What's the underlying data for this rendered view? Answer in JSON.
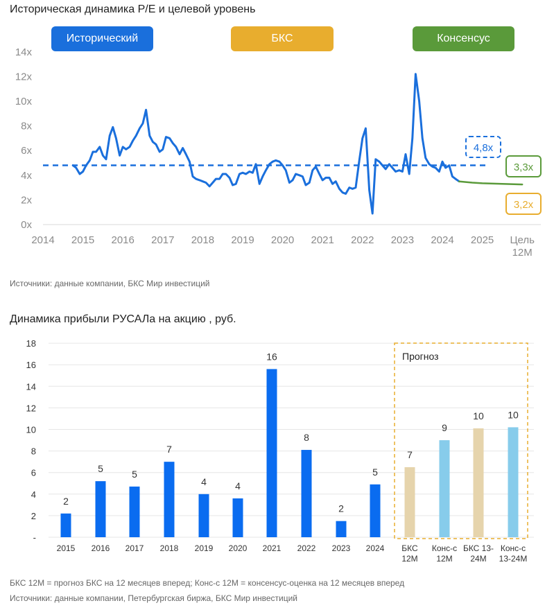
{
  "chart1": {
    "title": "Историческая динамика P/E и целевой уровень",
    "source": "Источники: данные компании, БКС Мир инвестиций",
    "legend": [
      {
        "label": "Исторический",
        "color": "#1a6fdc"
      },
      {
        "label": "БКС",
        "color": "#e8ad2e"
      },
      {
        "label": "Консенсус",
        "color": "#5a9a3a"
      }
    ]
  },
  "chart2": {
    "title": "Динамика прибыли РУСАЛа на акцию , руб.",
    "forecast_label": "Прогноз",
    "footnote": "БКС 12М = прогноз БКС на 12 месяцев вперед; Конс-с 12М = консенсус-оценка на 12 месяцев вперед",
    "source": "Источники: данные компании, Петербургская биржа, БКС Мир инвестиций"
  },
  "chart_data": [
    {
      "type": "line",
      "title": "Историческая динамика P/E и целевой уровень",
      "y_unit": "x",
      "ylim": [
        0,
        14
      ],
      "y_ticks": [
        "0x",
        "2x",
        "4x",
        "6x",
        "8x",
        "10x",
        "12x",
        "14x"
      ],
      "x_ticks": [
        "2014",
        "2015",
        "2016",
        "2017",
        "2018",
        "2019",
        "2020",
        "2021",
        "2022",
        "2023",
        "2024",
        "2025",
        "Цель\n12М"
      ],
      "grid": false,
      "series": [
        {
          "name": "Исторический",
          "color": "#1a6fdc",
          "points": [
            [
              2014.75,
              4.8
            ],
            [
              2014.83,
              4.6
            ],
            [
              2014.92,
              4.1
            ],
            [
              2015.0,
              4.3
            ],
            [
              2015.08,
              4.8
            ],
            [
              2015.17,
              5.2
            ],
            [
              2015.25,
              5.9
            ],
            [
              2015.33,
              5.9
            ],
            [
              2015.42,
              6.3
            ],
            [
              2015.5,
              5.6
            ],
            [
              2015.58,
              5.3
            ],
            [
              2015.67,
              7.2
            ],
            [
              2015.75,
              7.9
            ],
            [
              2015.83,
              7.0
            ],
            [
              2015.92,
              5.6
            ],
            [
              2016.0,
              6.3
            ],
            [
              2016.08,
              6.1
            ],
            [
              2016.17,
              6.3
            ],
            [
              2016.25,
              6.8
            ],
            [
              2016.33,
              7.2
            ],
            [
              2016.42,
              7.8
            ],
            [
              2016.5,
              8.2
            ],
            [
              2016.58,
              9.3
            ],
            [
              2016.67,
              7.2
            ],
            [
              2016.75,
              6.7
            ],
            [
              2016.83,
              6.5
            ],
            [
              2016.92,
              5.9
            ],
            [
              2017.0,
              6.1
            ],
            [
              2017.08,
              7.1
            ],
            [
              2017.17,
              7.0
            ],
            [
              2017.25,
              6.6
            ],
            [
              2017.33,
              6.3
            ],
            [
              2017.42,
              5.7
            ],
            [
              2017.5,
              6.2
            ],
            [
              2017.58,
              5.7
            ],
            [
              2017.67,
              5.1
            ],
            [
              2017.75,
              3.9
            ],
            [
              2017.83,
              3.7
            ],
            [
              2017.92,
              3.6
            ],
            [
              2018.0,
              3.5
            ],
            [
              2018.08,
              3.4
            ],
            [
              2018.17,
              3.1
            ],
            [
              2018.25,
              3.4
            ],
            [
              2018.33,
              3.7
            ],
            [
              2018.42,
              3.7
            ],
            [
              2018.5,
              4.1
            ],
            [
              2018.58,
              4.1
            ],
            [
              2018.67,
              3.8
            ],
            [
              2018.75,
              3.2
            ],
            [
              2018.83,
              3.3
            ],
            [
              2018.92,
              4.1
            ],
            [
              2019.0,
              4.2
            ],
            [
              2019.08,
              4.1
            ],
            [
              2019.17,
              4.3
            ],
            [
              2019.25,
              4.2
            ],
            [
              2019.33,
              4.9
            ],
            [
              2019.42,
              3.3
            ],
            [
              2019.5,
              3.9
            ],
            [
              2019.58,
              4.4
            ],
            [
              2019.67,
              4.9
            ],
            [
              2019.75,
              5.1
            ],
            [
              2019.83,
              5.2
            ],
            [
              2019.92,
              5.1
            ],
            [
              2020.0,
              4.8
            ],
            [
              2020.08,
              4.4
            ],
            [
              2020.17,
              3.4
            ],
            [
              2020.25,
              3.6
            ],
            [
              2020.33,
              4.1
            ],
            [
              2020.42,
              4.0
            ],
            [
              2020.5,
              3.9
            ],
            [
              2020.58,
              3.2
            ],
            [
              2020.67,
              3.4
            ],
            [
              2020.75,
              4.4
            ],
            [
              2020.83,
              4.7
            ],
            [
              2020.92,
              4.1
            ],
            [
              2021.0,
              3.6
            ],
            [
              2021.08,
              3.8
            ],
            [
              2021.17,
              3.8
            ],
            [
              2021.25,
              3.3
            ],
            [
              2021.33,
              3.5
            ],
            [
              2021.42,
              2.9
            ],
            [
              2021.5,
              2.6
            ],
            [
              2021.58,
              2.5
            ],
            [
              2021.67,
              3.0
            ],
            [
              2021.75,
              2.9
            ],
            [
              2021.83,
              3.0
            ],
            [
              2021.92,
              5.2
            ],
            [
              2022.0,
              7.0
            ],
            [
              2022.08,
              7.8
            ],
            [
              2022.17,
              2.8
            ],
            [
              2022.25,
              0.9
            ],
            [
              2022.33,
              5.3
            ],
            [
              2022.42,
              5.1
            ],
            [
              2022.5,
              4.8
            ],
            [
              2022.58,
              4.5
            ],
            [
              2022.67,
              4.9
            ],
            [
              2022.75,
              4.6
            ],
            [
              2022.83,
              4.3
            ],
            [
              2022.92,
              4.4
            ],
            [
              2023.0,
              4.3
            ],
            [
              2023.08,
              5.7
            ],
            [
              2023.17,
              4.1
            ],
            [
              2023.25,
              7.0
            ],
            [
              2023.33,
              12.2
            ],
            [
              2023.42,
              10.0
            ],
            [
              2023.5,
              7.0
            ],
            [
              2023.58,
              5.4
            ],
            [
              2023.67,
              4.9
            ],
            [
              2023.75,
              4.7
            ],
            [
              2023.83,
              4.6
            ],
            [
              2023.92,
              4.3
            ],
            [
              2024.0,
              5.1
            ],
            [
              2024.08,
              4.6
            ],
            [
              2024.17,
              4.8
            ],
            [
              2024.25,
              3.9
            ],
            [
              2024.33,
              3.7
            ],
            [
              2024.42,
              3.5
            ]
          ]
        },
        {
          "name": "Консенсус",
          "color": "#5a9a3a",
          "points": [
            [
              2024.42,
              3.5
            ],
            [
              2024.75,
              3.4
            ],
            [
              2025.0,
              3.35
            ],
            [
              2025.5,
              3.3
            ],
            [
              2026.0,
              3.25
            ]
          ]
        }
      ],
      "reference_line": {
        "value": 4.8,
        "label": "4,8x",
        "color": "#1a6fdc",
        "style": "dashed"
      },
      "annotations": [
        {
          "text": "3,3x",
          "color": "#5a9a3a"
        },
        {
          "text": "3,2x",
          "color": "#e8ad2e"
        }
      ]
    },
    {
      "type": "bar",
      "title": "Динамика прибыли РУСАЛа на акцию , руб.",
      "ylim": [
        0,
        18
      ],
      "y_ticks": [
        "-",
        "2",
        "4",
        "6",
        "8",
        "10",
        "12",
        "14",
        "16",
        "18"
      ],
      "categories": [
        "2015",
        "2016",
        "2017",
        "2018",
        "2019",
        "2020",
        "2021",
        "2022",
        "2023",
        "2024",
        "БКС\n12М",
        "Конс-с\n12М",
        "БКС 13-\n24М",
        "Конс-с\n13-24М"
      ],
      "values": [
        2.2,
        5.2,
        4.7,
        7.0,
        4.0,
        3.6,
        15.6,
        8.1,
        1.5,
        4.9,
        6.5,
        9.0,
        10.1,
        10.2
      ],
      "labels": [
        "2",
        "5",
        "5",
        "7",
        "4",
        "4",
        "16",
        "8",
        "2",
        "5",
        "7",
        "9",
        "10",
        "10"
      ],
      "colors": [
        "#0a6cf0",
        "#0a6cf0",
        "#0a6cf0",
        "#0a6cf0",
        "#0a6cf0",
        "#0a6cf0",
        "#0a6cf0",
        "#0a6cf0",
        "#0a6cf0",
        "#0a6cf0",
        "#e6d4ac",
        "#87cceb",
        "#e6d4ac",
        "#87cceb"
      ],
      "forecast_group": "Прогноз"
    }
  ]
}
